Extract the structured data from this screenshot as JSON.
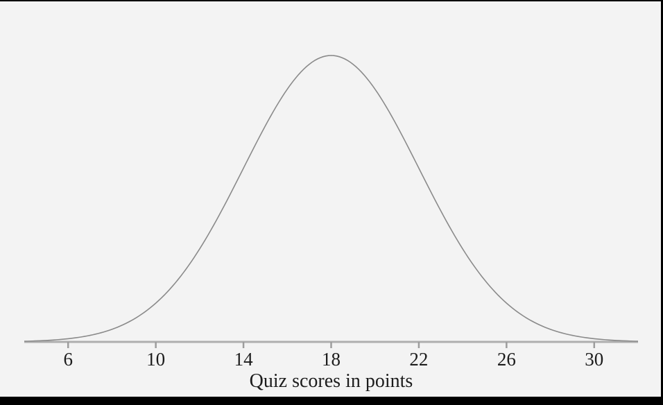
{
  "page": {
    "background": "#000000",
    "canvas_background": "#f3f3f3"
  },
  "chart_data": {
    "type": "line",
    "subtype": "normal-distribution-curve",
    "title": "",
    "xlabel": "Quiz scores in points",
    "ylabel": "",
    "mean": 18,
    "std_dev": 4,
    "x_range": [
      4,
      32
    ],
    "x_ticks": [
      6,
      10,
      14,
      18,
      22,
      26,
      30
    ],
    "x_tick_labels": [
      "6",
      "10",
      "14",
      "18",
      "22",
      "26",
      "30"
    ],
    "grid": false,
    "legend": false,
    "y_axis_shown": false,
    "colors": {
      "curve": "#8a8a8a",
      "axis": "#aeaeae",
      "tick": "#9d9d9d",
      "text": "#1c1c1c"
    }
  }
}
